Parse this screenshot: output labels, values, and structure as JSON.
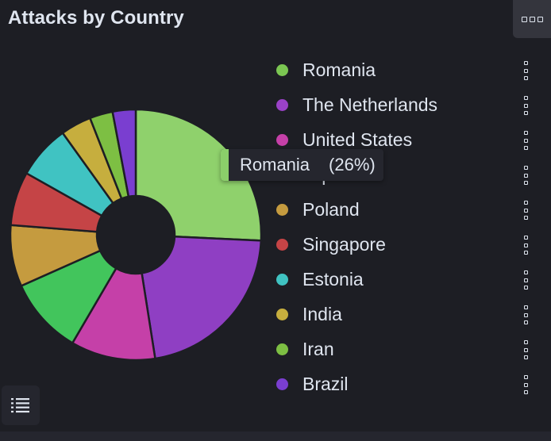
{
  "panel": {
    "title": "Attacks by Country"
  },
  "tooltip": {
    "label": "Romania",
    "value": "(26%)",
    "color": "#8bcf6a"
  },
  "chart_data": {
    "type": "pie",
    "title": "Attacks by Country",
    "donut": true,
    "legend_position": "right",
    "labels": [
      "Romania",
      "The Netherlands",
      "United States",
      "Japan",
      "Poland",
      "Singapore",
      "Estonia",
      "India",
      "Iran",
      "Brazil"
    ],
    "values": [
      26,
      22,
      11,
      10,
      8,
      7,
      7,
      4,
      3,
      3
    ],
    "colors": [
      "#8fd16c",
      "#8f3fc3",
      "#c540a8",
      "#42c55c",
      "#c59b3f",
      "#c54446",
      "#40c3c2",
      "#c6ae3e",
      "#7dbf43",
      "#7a3ed0"
    ]
  },
  "legend": {
    "items": [
      {
        "label": "Romania",
        "color": "#7bc652"
      },
      {
        "label": "The Netherlands",
        "color": "#9a42c7"
      },
      {
        "label": "United States",
        "color": "#c540a8"
      },
      {
        "label": "Japan",
        "color": "#42c55c"
      },
      {
        "label": "Poland",
        "color": "#c59b3f"
      },
      {
        "label": "Singapore",
        "color": "#c54446"
      },
      {
        "label": "Estonia",
        "color": "#40c3c2"
      },
      {
        "label": "India",
        "color": "#c6ae3e"
      },
      {
        "label": "Iran",
        "color": "#7dbf43"
      },
      {
        "label": "Brazil",
        "color": "#7a3ed0"
      }
    ]
  },
  "icons": {
    "options": "panel-options-icon",
    "legend_toggle": "list-icon",
    "item_menu": "vertical-dots-icon"
  }
}
